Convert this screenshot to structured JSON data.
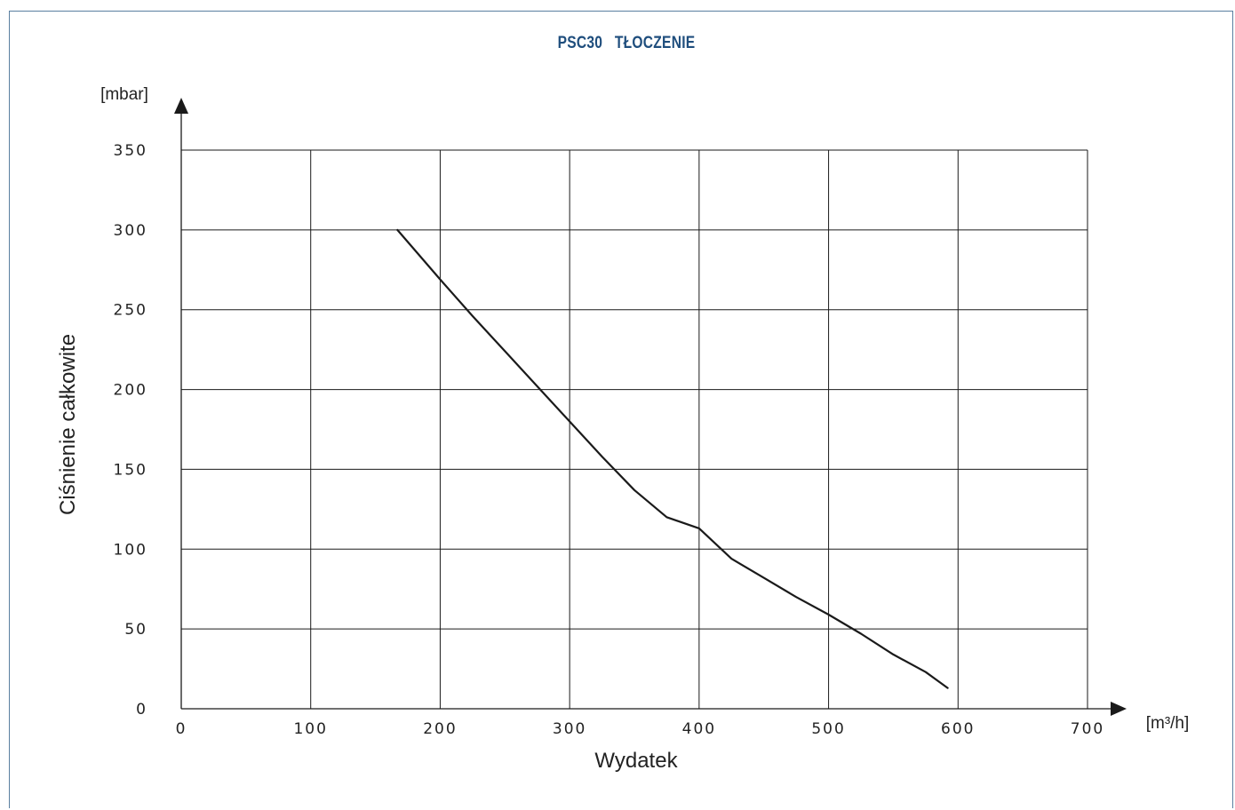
{
  "chart_data": {
    "type": "line",
    "title": "PSC30   TŁOCZENIE",
    "xlabel": "Wydatek",
    "ylabel": "Ciśnienie całkowite",
    "x_unit": "[m³/h]",
    "y_unit": "[mbar]",
    "xlim": [
      0,
      700
    ],
    "ylim": [
      0,
      350
    ],
    "x_ticks": [
      "0",
      "100",
      "200",
      "300",
      "400",
      "500",
      "600",
      "700"
    ],
    "y_ticks": [
      "0",
      "50",
      "100",
      "150",
      "200",
      "250",
      "300",
      "350"
    ],
    "grid": true,
    "series": [
      {
        "x": [
          167,
          200,
          225,
          250,
          275,
          300,
          325,
          350,
          375,
          400,
          425,
          450,
          475,
          500,
          525,
          550,
          575,
          592
        ],
        "y": [
          300,
          269,
          246,
          224,
          202,
          180,
          158,
          137,
          120,
          113,
          94,
          82,
          70,
          59,
          47,
          34,
          23,
          13
        ]
      }
    ],
    "line_color": "#1a1a1a",
    "title_color": "#1f4e7d"
  }
}
